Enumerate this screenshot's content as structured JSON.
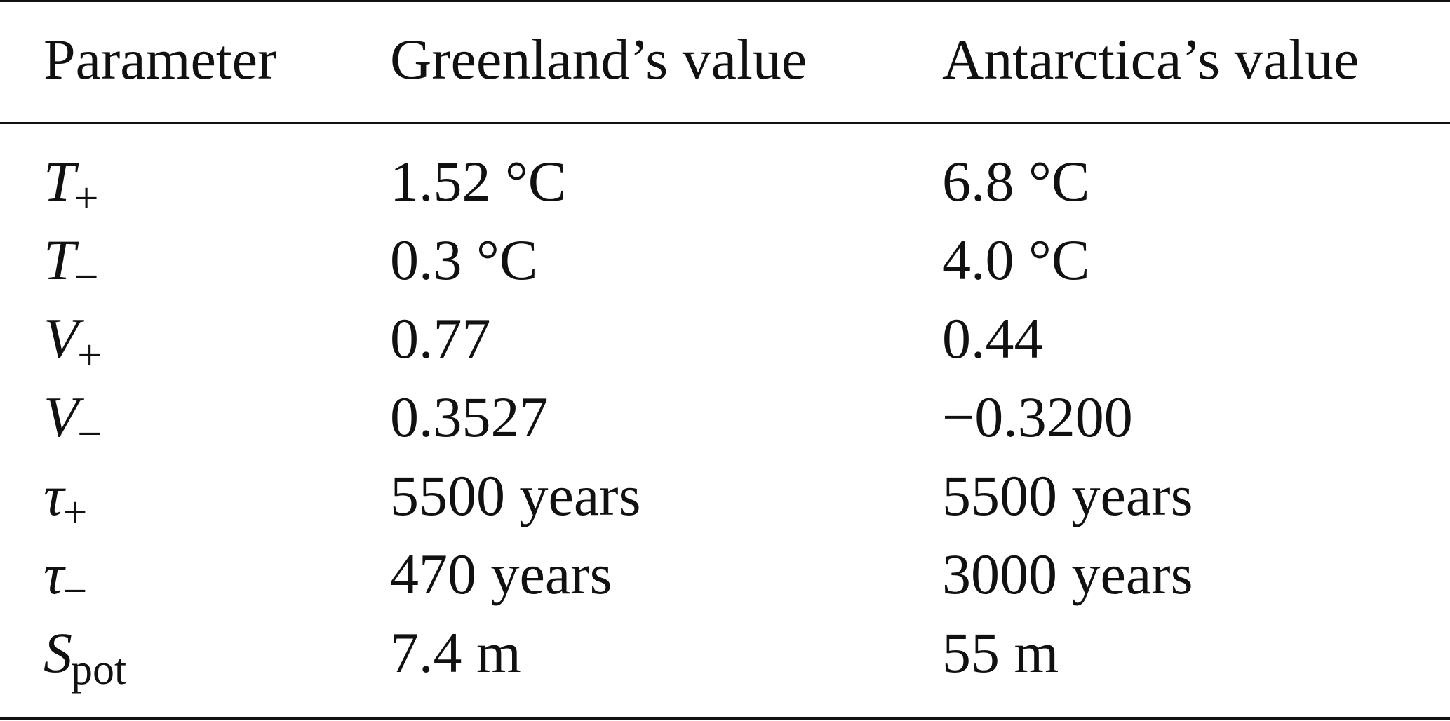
{
  "table": {
    "headers": [
      "Parameter",
      "Greenland’s value",
      "Antarctica’s value"
    ],
    "rows": [
      {
        "symbol": "T",
        "subscript": "+",
        "greenland": "1.52 °C",
        "antarctica": "6.8 °C"
      },
      {
        "symbol": "T",
        "subscript": "−",
        "greenland": "0.3 °C",
        "antarctica": "4.0 °C"
      },
      {
        "symbol": "V",
        "subscript": "+",
        "greenland": "0.77",
        "antarctica": "0.44"
      },
      {
        "symbol": "V",
        "subscript": "−",
        "greenland": "0.3527",
        "antarctica": "−0.3200"
      },
      {
        "symbol": "τ",
        "subscript": "+",
        "greenland": "5500 years",
        "antarctica": "5500 years"
      },
      {
        "symbol": "τ",
        "subscript": "−",
        "greenland": "470 years",
        "antarctica": "3000 years"
      },
      {
        "symbol": "S",
        "subscript": "pot",
        "greenland": "7.4 m",
        "antarctica": "55 m"
      }
    ]
  }
}
